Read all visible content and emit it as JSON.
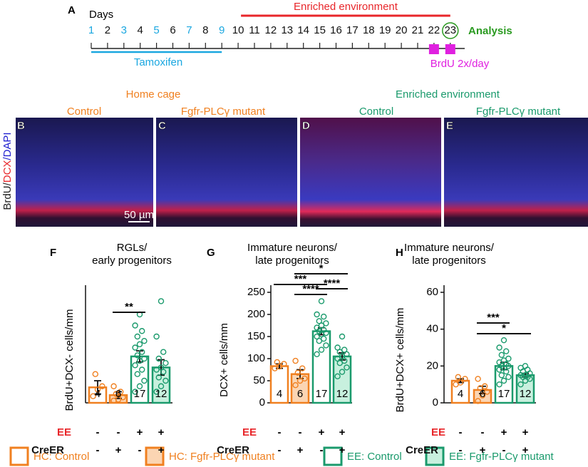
{
  "timeline": {
    "label": "A",
    "days_title": "Days",
    "days": [
      1,
      2,
      3,
      4,
      5,
      6,
      7,
      8,
      9,
      10,
      11,
      12,
      13,
      14,
      15,
      16,
      17,
      18,
      19,
      20,
      21,
      22,
      23
    ],
    "enriched": "Enriched environment",
    "tamoxifen": "Tamoxifen",
    "brdu": "BrdU 2x/day",
    "analysis": "Analysis"
  },
  "images": {
    "ylabel": [
      "BrdU/",
      "DCX",
      "/DAPI"
    ],
    "groups": [
      "Home cage",
      "Enriched environment"
    ],
    "panels": [
      {
        "label": "B",
        "title": "Control"
      },
      {
        "label": "C",
        "title": "Fgfr-PLCγ mutant"
      },
      {
        "label": "D",
        "title": "Control"
      },
      {
        "label": "E",
        "title": "Fgfr-PLCγ mutant"
      }
    ],
    "scale_bar": "50 µm"
  },
  "legend": [
    {
      "label": "HC: Control",
      "stroke": "#f08020",
      "fill": "#ffffff"
    },
    {
      "label": "HC: Fgfr-PLCγ mutant",
      "stroke": "#f08020",
      "fill": "#fbd5b3"
    },
    {
      "label": "EE: Control",
      "stroke": "#1a9a6c",
      "fill": "#ffffff"
    },
    {
      "label": "EE: Fgfr-PLCγ mutant",
      "stroke": "#1a9a6c",
      "fill": "#c8f0de"
    }
  ],
  "chart_data": [
    {
      "type": "bar",
      "label": "F",
      "title": [
        "RGLs/",
        "early progenitors"
      ],
      "ylabel": "BrdU+DCX- cells/mm",
      "ylim": [
        0,
        10
      ],
      "yticks": [],
      "values": [
        1.4,
        0.7,
        4.2,
        3.2
      ],
      "errors": [
        0.6,
        0.3,
        0.5,
        0.7
      ],
      "points": [
        [
          0.6,
          1.2,
          1.5,
          2.6
        ],
        [
          0.2,
          0.3,
          0.5,
          0.8,
          1.0,
          1.5
        ],
        [
          1.0,
          1.5,
          2.0,
          2.6,
          3.0,
          3.4,
          3.8,
          4.0,
          4.3,
          4.6,
          5.0,
          5.3,
          5.6,
          6.0,
          6.5,
          7.0,
          8.0
        ],
        [
          1.0,
          1.5,
          2.0,
          2.3,
          2.8,
          3.0,
          3.2,
          3.6,
          4.0,
          4.6,
          6.0,
          9.2
        ]
      ],
      "n_labels": [
        "4",
        "6",
        "17",
        "12"
      ],
      "significance": [
        {
          "label": "**",
          "pair": [
            1,
            2
          ]
        }
      ],
      "rows": [
        {
          "label": "EE",
          "values": [
            "-",
            "-",
            "+",
            "+"
          ]
        },
        {
          "label": "CreER",
          "values": [
            "-",
            "+",
            "-",
            "+"
          ]
        }
      ]
    },
    {
      "type": "bar",
      "label": "G",
      "title": [
        "Immature neurons/",
        "late progenitors"
      ],
      "ylabel": "DCX+ cells/mm",
      "ylim": [
        0,
        250
      ],
      "yticks": [
        0,
        50,
        100,
        150,
        200,
        250
      ],
      "values": [
        83,
        65,
        162,
        105
      ],
      "errors": [
        5,
        10,
        8,
        8
      ],
      "points": [
        [
          78,
          82,
          88,
          92
        ],
        [
          40,
          50,
          55,
          68,
          78,
          95
        ],
        [
          110,
          120,
          130,
          140,
          145,
          150,
          155,
          158,
          162,
          165,
          170,
          175,
          180,
          185,
          195,
          200,
          230
        ],
        [
          60,
          70,
          80,
          90,
          95,
          100,
          105,
          110,
          115,
          120,
          125,
          150
        ]
      ],
      "n_labels": [
        "4",
        "6",
        "17",
        "12"
      ],
      "significance": [
        {
          "label": "*",
          "pair": [
            1,
            3
          ]
        },
        {
          "label": "***",
          "pair": [
            0,
            2
          ]
        },
        {
          "label": "****",
          "pair": [
            1,
            2
          ]
        },
        {
          "label": "****",
          "pair": [
            2,
            3
          ]
        }
      ],
      "rows": [
        {
          "label": "EE",
          "values": [
            "-",
            "-",
            "+",
            "+"
          ]
        },
        {
          "label": "CreER",
          "values": [
            "-",
            "+",
            "-",
            "+"
          ]
        }
      ]
    },
    {
      "type": "bar",
      "label": "H",
      "title": [
        "Immature neurons/",
        "late progenitors"
      ],
      "ylabel": "BrdU+DCX+ cells/mm",
      "ylim": [
        0,
        60
      ],
      "yticks": [
        0,
        20,
        40,
        60
      ],
      "values": [
        12,
        7,
        20,
        15
      ],
      "errors": [
        1,
        2,
        2,
        1
      ],
      "points": [
        [
          10,
          11,
          13,
          14
        ],
        [
          1,
          4,
          6,
          8,
          9,
          13
        ],
        [
          10,
          12,
          14,
          15,
          17,
          18,
          19,
          20,
          20,
          21,
          22,
          23,
          24,
          26,
          28,
          30,
          34
        ],
        [
          10,
          12,
          13,
          14,
          14,
          15,
          15,
          16,
          17,
          18,
          19,
          20
        ]
      ],
      "n_labels": [
        "4",
        "6",
        "17",
        "12"
      ],
      "significance": [
        {
          "label": "***",
          "pair": [
            1,
            2
          ]
        },
        {
          "label": "*",
          "pair": [
            1,
            3
          ]
        }
      ],
      "rows": [
        {
          "label": "EE",
          "values": [
            "-",
            "-",
            "+",
            "+"
          ]
        },
        {
          "label": "CreER",
          "values": [
            "-",
            "+",
            "-",
            "+"
          ]
        }
      ]
    }
  ]
}
